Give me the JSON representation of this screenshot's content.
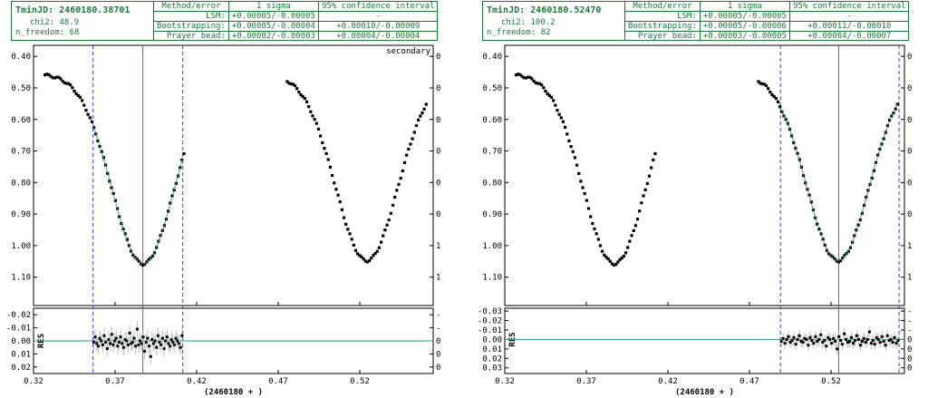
{
  "panels": [
    {
      "info": {
        "tmin_label": "TminJD: 2460180.38701",
        "chi2_label": "chi2: 48.9",
        "nfreedom_label": "n_freedom: 68"
      },
      "error_table": {
        "headers": [
          "Method/error",
          "1 sigma",
          "95% confidence interval"
        ],
        "rows": [
          {
            "method": "LSM:",
            "sigma": "+0.00005/-0.00005",
            "ci": "-"
          },
          {
            "method": "Bootstrapping:",
            "sigma": "+0.00005/-0.00004",
            "ci": "+0.00010/-0.00009"
          },
          {
            "method": "Prayer bead:",
            "sigma": "+0.00002/-0.00003",
            "ci": "+0.00004/-0.00004"
          }
        ]
      },
      "annotation": "secondary"
    },
    {
      "info": {
        "tmin_label": "TminJD: 2460180.52470",
        "chi2_label": "chi2: 100.2",
        "nfreedom_label": "n_freedom: 82"
      },
      "error_table": {
        "headers": [
          "Method/error",
          "1 sigma",
          "95% confidence interval"
        ],
        "rows": [
          {
            "method": "LSM:",
            "sigma": "+0.00005/-0.00005",
            "ci": "-"
          },
          {
            "method": "Bootstrapping:",
            "sigma": "+0.00005/-0.00006",
            "ci": "+0.00011/-0.00010"
          },
          {
            "method": "Prayer bead:",
            "sigma": "+0.00003/-0.00005",
            "ci": "+0.00004/-0.00007"
          }
        ]
      },
      "annotation": ""
    }
  ],
  "colors": {
    "points": "#000000",
    "fit": "#2a8c5a",
    "minimum": "#e8352e",
    "window": "#3a3acf",
    "residual_zero": "#2a9d8f",
    "error_bars": "#bbbbbb",
    "frame": "#000000"
  },
  "chart_data": [
    {
      "type": "scatter",
      "xlabel": "(2460180 + )",
      "ylabel_residual": "RES",
      "x_ticks": [
        0.32,
        0.37,
        0.42,
        0.47,
        0.52
      ],
      "y_ticks": [
        0.4,
        0.5,
        0.6,
        0.7,
        0.8,
        0.9,
        1.0,
        1.1
      ],
      "res_ticks": [
        -0.02,
        -0.01,
        0.0,
        0.01,
        0.02
      ],
      "xlim": [
        0.32,
        0.565
      ],
      "ylim": [
        0.365,
        1.19
      ],
      "res_lim": [
        -0.025,
        0.025
      ],
      "y_inverted": true,
      "t_min": 0.38701,
      "window": [
        0.3565,
        0.4115
      ],
      "light_curve": {
        "primary": {
          "t0": 0.3872,
          "depth": 1.058,
          "width": 0.027,
          "range": [
            0.327,
            0.4125
          ]
        },
        "secondary": {
          "t0": 0.5243,
          "depth": 1.048,
          "width": 0.027,
          "range": [
            0.4755,
            0.5615
          ]
        },
        "max_level": 0.455,
        "step": 0.0012
      },
      "residuals": [
        0.001,
        -0.003,
        0.002,
        0.004,
        -0.002,
        0.0,
        0.003,
        -0.004,
        0.001,
        0.006,
        -0.001,
        0.002,
        -0.005,
        0.003,
        0.0,
        -0.002,
        0.004,
        0.001,
        -0.003,
        0.002,
        0.005,
        -0.001,
        0.0,
        0.003,
        -0.006,
        0.002,
        0.001,
        -0.002,
        0.004,
        -0.009,
        0.003,
        0.0,
        0.002,
        -0.003,
        0.008,
        0.001,
        -0.002,
        0.004,
        0.012,
        -0.001,
        0.002,
        0.0,
        0.005,
        -0.004,
        0.001,
        0.003,
        -0.002,
        0.006,
        0.0,
        -0.003,
        0.002,
        0.004,
        -0.001,
        0.001,
        0.003,
        -0.002,
        0.0,
        0.002,
        0.005,
        -0.004
      ]
    },
    {
      "type": "scatter",
      "xlabel": "(2460180 + )",
      "ylabel_residual": "RES",
      "x_ticks": [
        0.32,
        0.37,
        0.42,
        0.47,
        0.52
      ],
      "y_ticks": [
        0.4,
        0.5,
        0.6,
        0.7,
        0.8,
        0.9,
        1.0,
        1.1
      ],
      "res_ticks": [
        -0.03,
        -0.02,
        -0.01,
        0.0,
        0.01,
        0.02,
        0.03
      ],
      "xlim": [
        0.32,
        0.565
      ],
      "ylim": [
        0.365,
        1.19
      ],
      "res_lim": [
        -0.033,
        0.036
      ],
      "y_inverted": true,
      "t_min": 0.5247,
      "window": [
        0.489,
        0.5617
      ],
      "light_curve": {
        "primary": {
          "t0": 0.3872,
          "depth": 1.058,
          "width": 0.027,
          "range": [
            0.327,
            0.4125
          ]
        },
        "secondary": {
          "t0": 0.5243,
          "depth": 1.048,
          "width": 0.027,
          "range": [
            0.4755,
            0.5615
          ]
        },
        "max_level": 0.455,
        "step": 0.0012
      },
      "residuals": [
        0.002,
        -0.001,
        0.004,
        0.0,
        -0.003,
        0.003,
        0.001,
        -0.002,
        0.005,
        0.0,
        -0.004,
        0.002,
        0.003,
        -0.001,
        0.0,
        0.006,
        -0.002,
        0.001,
        0.004,
        -0.003,
        0.002,
        0.0,
        -0.005,
        0.003,
        0.001,
        0.007,
        -0.002,
        0.0,
        0.004,
        -0.001,
        0.002,
        0.01,
        -0.003,
        0.001,
        0.005,
        -0.006,
        0.0,
        0.003,
        0.002,
        -0.002,
        0.004,
        0.001,
        -0.004,
        0.0,
        0.006,
        0.002,
        -0.001,
        0.003,
        0.0,
        -0.008,
        0.004,
        0.001,
        0.005,
        -0.002,
        0.0,
        0.003,
        -0.003,
        0.002,
        0.006,
        -0.004,
        0.001,
        0.0,
        0.003,
        -0.002,
        0.004,
        0.001
      ]
    }
  ]
}
